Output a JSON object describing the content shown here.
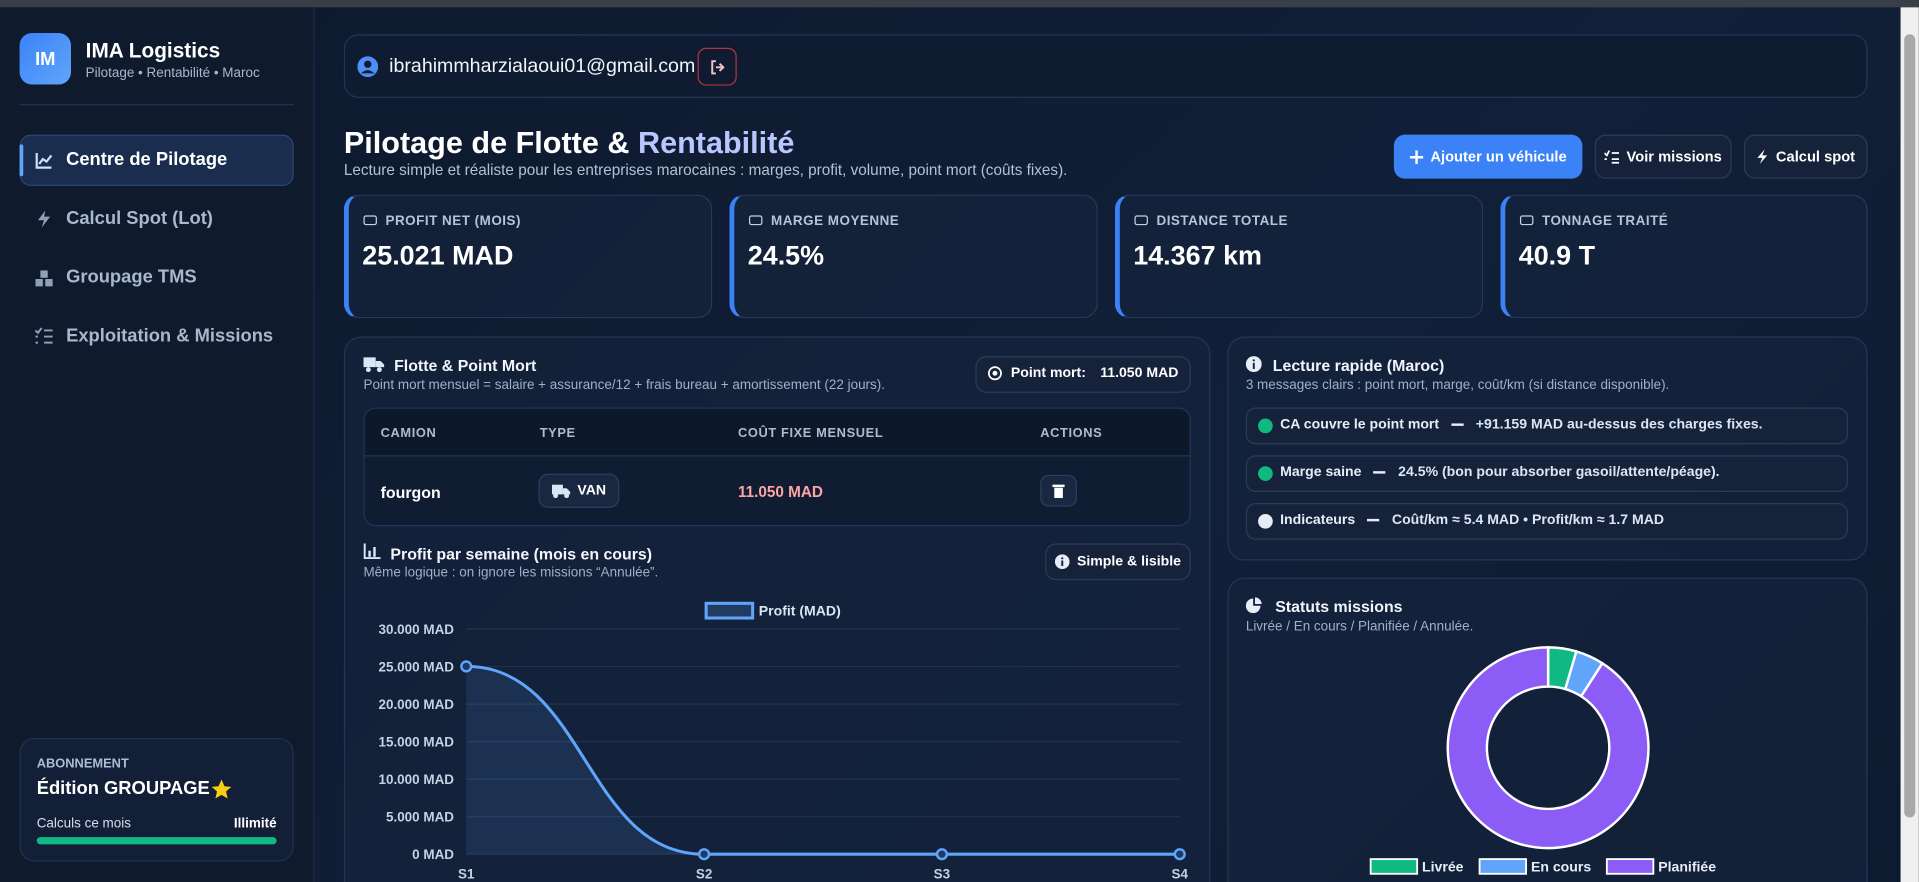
{
  "sidebar": {
    "logo": "IM",
    "brand": "IMA Logistics",
    "tagline": "Pilotage • Rentabilité • Maroc",
    "nav": [
      "Centre de Pilotage",
      "Calcul Spot (Lot)",
      "Groupage TMS",
      "Exploitation & Missions"
    ],
    "plan": {
      "label": "ABONNEMENT",
      "name": "Édition GROUPAGE",
      "usage_label": "Calculs ce mois",
      "usage_value": "Illimité"
    }
  },
  "topbar": {
    "email": "ibrahimmharzialaoui01@gmail.com"
  },
  "header": {
    "title": "Pilotage de Flotte &",
    "title_highlight": "Rentabilité",
    "subtitle": "Lecture simple et réaliste pour les entreprises marocaines : marges, profit, volume, point mort (coûts fixes).",
    "buttons": [
      "Ajouter un véhicule",
      "Voir missions",
      "Calcul spot"
    ]
  },
  "kpis": [
    {
      "label": "PROFIT NET (MOIS)",
      "value": "25.021 MAD"
    },
    {
      "label": "MARGE MOYENNE",
      "value": "24.5%"
    },
    {
      "label": "DISTANCE TOTALE",
      "value": "14.367 km"
    },
    {
      "label": "TONNAGE TRAITÉ",
      "value": "40.9 T"
    }
  ],
  "fleet": {
    "title": "Flotte & Point Mort",
    "subtitle": "Point mort mensuel = salaire + assurance/12 + frais bureau + amortissement (22 jours).",
    "badge_label": "Point mort:",
    "badge_value": "11.050 MAD",
    "table": {
      "headers": [
        "CAMION",
        "TYPE",
        "COÛT FIXE MENSUEL",
        "ACTIONS"
      ],
      "rows": [
        [
          "fourgon",
          "VAN",
          "11.050 MAD"
        ]
      ]
    }
  },
  "profit_chart": {
    "type": "line",
    "title": "Profit par semaine (mois en cours)",
    "subtitle": "Même logique : on ignore les missions “Annulée”.",
    "badge": "Simple & lisible",
    "categories": [
      "S1",
      "S2",
      "S3",
      "S4"
    ],
    "series": [
      {
        "name": "Profit (MAD)",
        "color": "#60a5fa",
        "values": [
          25021,
          0,
          0,
          0
        ]
      }
    ],
    "ylim": [
      0,
      30000
    ],
    "yticks": [
      {
        "value": 0,
        "label": "0 MAD"
      },
      {
        "value": 5000,
        "label": "5.000 MAD"
      },
      {
        "value": 10000,
        "label": "10.000 MAD"
      },
      {
        "value": 15000,
        "label": "15.000 MAD"
      },
      {
        "value": 20000,
        "label": "20.000 MAD"
      },
      {
        "value": 25000,
        "label": "25.000 MAD"
      },
      {
        "value": 30000,
        "label": "30.000 MAD"
      }
    ],
    "grid": true
  },
  "insights": {
    "title": "Lecture rapide (Maroc)",
    "subtitle": "3 messages clairs : point mort, marge, coût/km (si distance disponible).",
    "items": [
      {
        "label": "CA couvre le point mort",
        "text": "+91.159 MAD au-dessus des charges fixes."
      },
      {
        "label": "Marge saine",
        "text": "24.5% (bon pour absorber gasoil/attente/péage)."
      },
      {
        "label": "Indicateurs",
        "text": "Coût/km ≈ 5.4 MAD • Profit/km ≈ 1.7 MAD"
      }
    ]
  },
  "status_chart": {
    "type": "pie",
    "title": "Statuts missions",
    "subtitle": "Livrée / En cours / Planifiée / Annulée.",
    "categories": [
      "Livrée",
      "En cours",
      "Planifiée"
    ],
    "colors": [
      "#10b981",
      "#60a5fa",
      "#8b5cf6"
    ],
    "values": [
      1,
      1,
      20
    ]
  }
}
